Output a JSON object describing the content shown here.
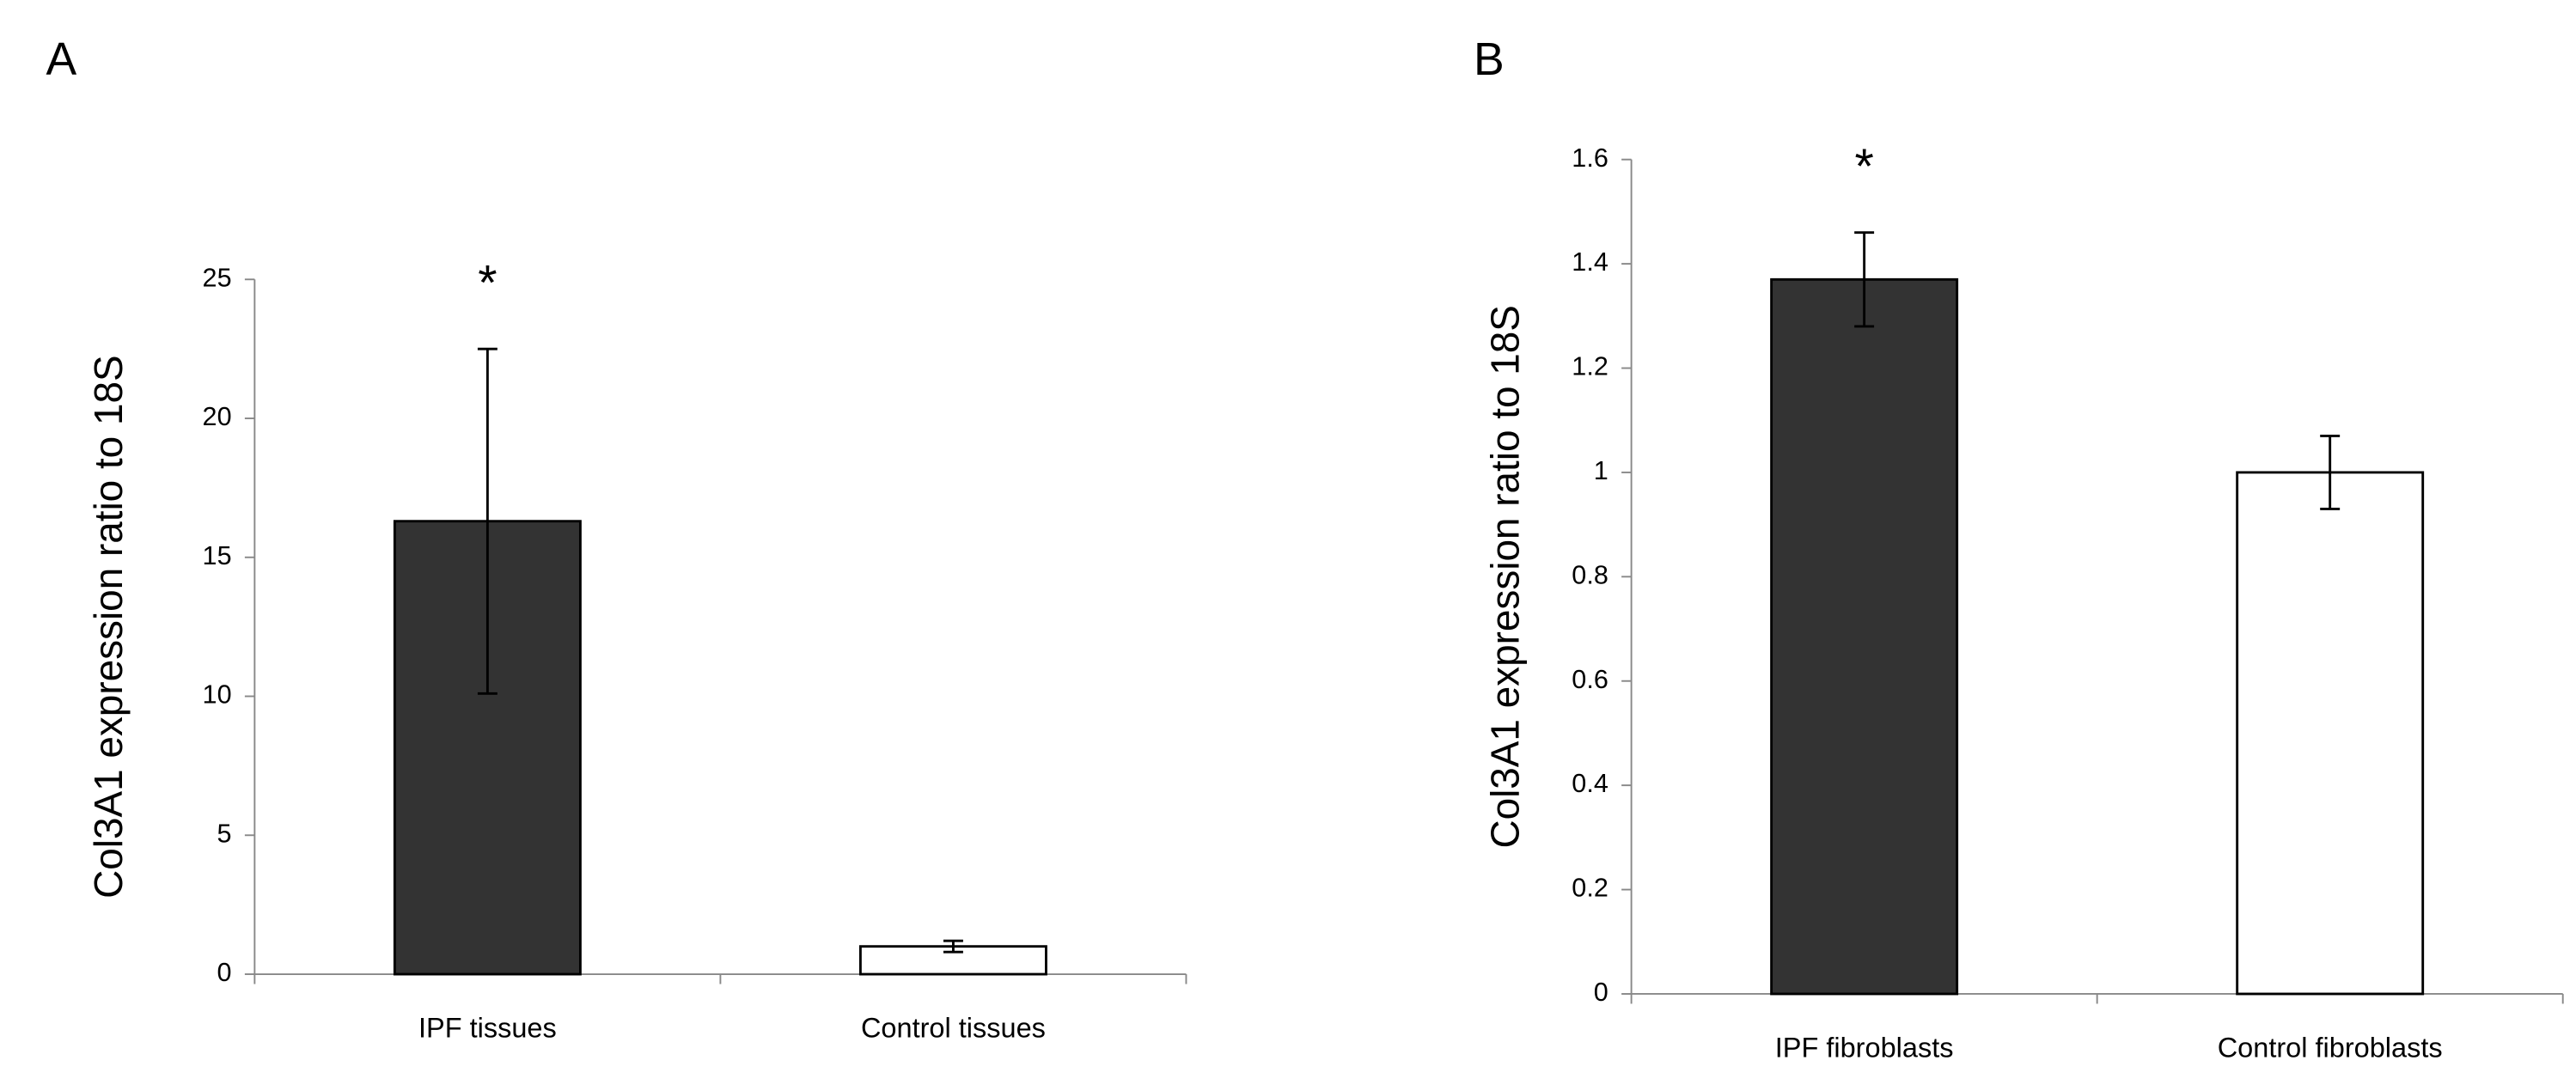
{
  "chart_data": [
    {
      "type": "bar",
      "panel": "A",
      "annotation": "*",
      "ylabel": "Col3A1 expression ratio to 18S",
      "categories": [
        "IPF tissues",
        "Control tissues"
      ],
      "values": [
        16.3,
        1.0
      ],
      "errors": [
        6.2,
        0.2
      ],
      "colors": [
        "#333333",
        "#ffffff"
      ],
      "ylim": [
        0,
        25
      ],
      "yticks": [
        0,
        5,
        10,
        15,
        20,
        25
      ]
    },
    {
      "type": "bar",
      "panel": "B",
      "annotation": "*",
      "ylabel": "Col3A1 expression ratio to 18S",
      "categories": [
        "IPF fibroblasts",
        "Control fibroblasts"
      ],
      "values": [
        1.37,
        1.0
      ],
      "errors": [
        0.09,
        0.07
      ],
      "colors": [
        "#333333",
        "#ffffff"
      ],
      "ylim": [
        0,
        1.6
      ],
      "yticks": [
        0,
        0.2,
        0.4,
        0.6,
        0.8,
        1,
        1.2,
        1.4,
        1.6
      ]
    }
  ]
}
